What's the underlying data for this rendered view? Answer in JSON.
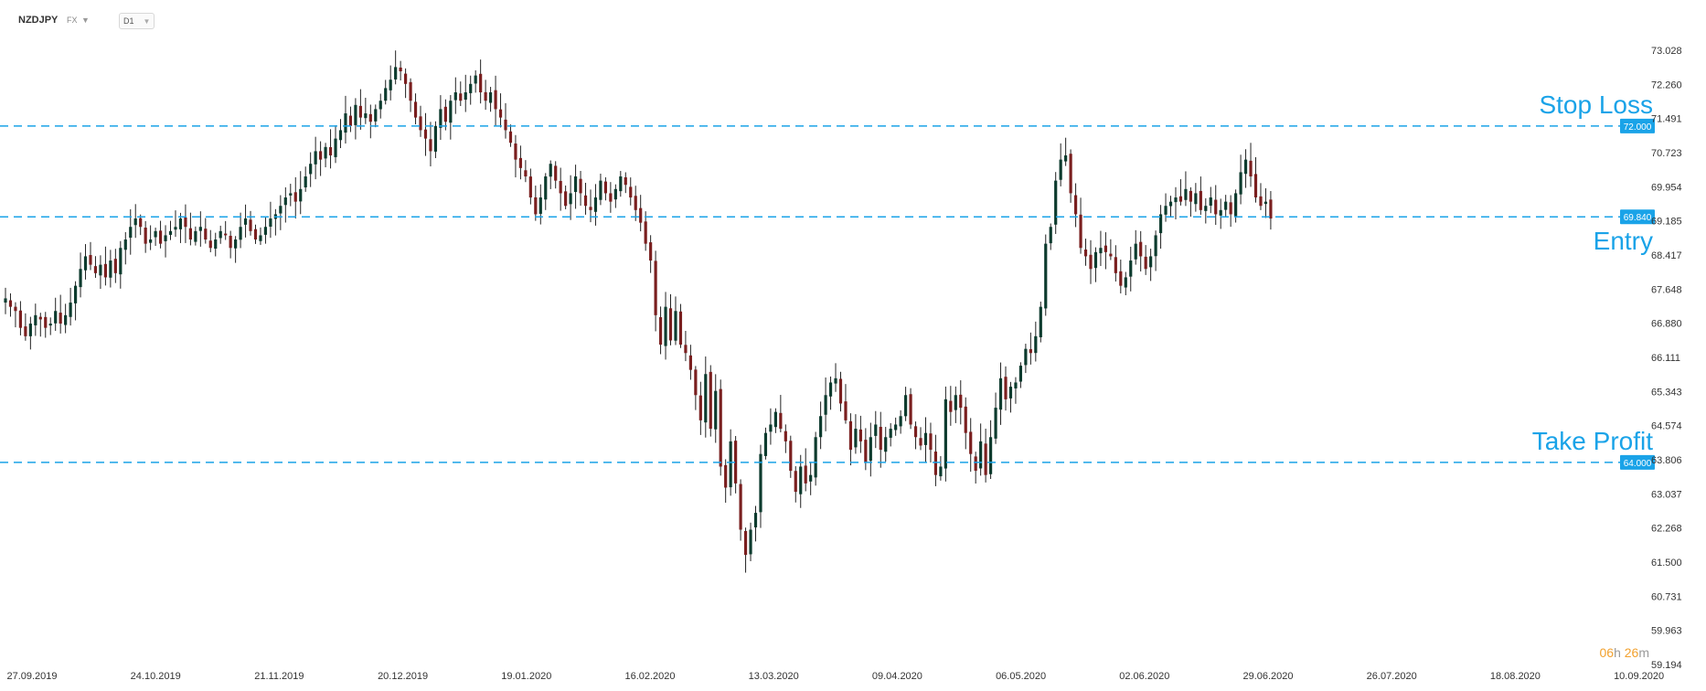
{
  "header": {
    "symbol": "NZDJPY",
    "market": "FX",
    "timeframe": "D1"
  },
  "timer": {
    "hours": "06",
    "h_unit": "h",
    "minutes": "26",
    "m_unit": "m"
  },
  "colors": {
    "bull": "#0d3b2e",
    "bear": "#7a1f1f",
    "level_line": "#1aa3e8",
    "level_text": "#1aa3e8",
    "axis_text": "#333333",
    "timer": "#f2a12e"
  },
  "chart_data": {
    "type": "candlestick",
    "title": "",
    "ylim": [
      59.194,
      73.8
    ],
    "y_ticks": [
      "73.028",
      "72.260",
      "71.491",
      "70.723",
      "69.954",
      "69.185",
      "68.417",
      "67.648",
      "66.880",
      "66.111",
      "65.343",
      "64.574",
      "63.806",
      "63.037",
      "62.268",
      "61.500",
      "60.731",
      "59.963",
      "59.194"
    ],
    "x_ticks": [
      "27.09.2019",
      "24.10.2019",
      "21.11.2019",
      "20.12.2019",
      "19.01.2020",
      "16.02.2020",
      "13.03.2020",
      "09.04.2020",
      "06.05.2020",
      "02.06.2020",
      "29.06.2020",
      "26.07.2020",
      "18.08.2020",
      "10.09.2020"
    ],
    "grid": false,
    "levels": [
      {
        "label": "Stop Loss",
        "value": 72.0,
        "value_label": "72.000"
      },
      {
        "label": "Entry",
        "value": 69.84,
        "value_label": "69.840"
      },
      {
        "label": "Take Profit",
        "value": 64.0,
        "value_label": "64.000"
      }
    ],
    "close": [
      67.9,
      67.7,
      67.6,
      67.2,
      67.0,
      67.3,
      67.5,
      67.4,
      67.2,
      67.3,
      67.6,
      67.3,
      67.5,
      67.8,
      68.2,
      68.6,
      68.9,
      68.7,
      68.5,
      68.7,
      68.4,
      68.8,
      68.5,
      69.1,
      69.3,
      69.6,
      69.8,
      69.6,
      69.2,
      69.3,
      69.5,
      69.2,
      69.4,
      69.5,
      69.6,
      69.8,
      69.6,
      69.3,
      69.5,
      69.6,
      69.3,
      69.1,
      69.3,
      69.5,
      69.4,
      69.1,
      69.3,
      69.6,
      69.8,
      69.5,
      69.3,
      69.4,
      69.6,
      69.8,
      69.9,
      70.1,
      70.3,
      70.4,
      70.2,
      70.5,
      70.8,
      71.1,
      71.4,
      71.2,
      71.5,
      71.3,
      71.7,
      71.9,
      72.3,
      72.0,
      72.5,
      72.2,
      72.3,
      72.1,
      72.4,
      72.6,
      72.9,
      73.1,
      73.4,
      73.3,
      73.0,
      72.6,
      72.2,
      71.9,
      71.7,
      71.4,
      72.0,
      72.4,
      72.1,
      72.6,
      72.8,
      72.6,
      72.8,
      73.0,
      73.2,
      72.8,
      72.6,
      72.8,
      72.4,
      72.2,
      71.9,
      71.6,
      71.2,
      71.0,
      70.8,
      70.3,
      69.9,
      70.3,
      70.8,
      71.1,
      70.7,
      70.4,
      70.1,
      70.4,
      70.8,
      70.4,
      70.1,
      70.0,
      70.3,
      70.7,
      70.4,
      70.2,
      70.5,
      70.8,
      70.6,
      70.3,
      70.0,
      69.7,
      69.2,
      68.8,
      67.5,
      66.8,
      67.7,
      66.9,
      67.6,
      66.8,
      66.6,
      66.2,
      65.6,
      65.0,
      66.1,
      64.8,
      65.7,
      63.9,
      63.4,
      64.5,
      63.5,
      62.4,
      61.8,
      62.4,
      62.8,
      64.2,
      64.7,
      64.9,
      65.2,
      64.8,
      64.5,
      63.8,
      63.3,
      63.9,
      63.5,
      63.7,
      64.6,
      65.1,
      65.6,
      65.9,
      66.0,
      65.4,
      65.0,
      64.3,
      64.8,
      64.5,
      64.0,
      64.6,
      64.9,
      64.3,
      64.6,
      64.8,
      64.9,
      65.1,
      65.6,
      64.9,
      64.6,
      64.4,
      64.7,
      64.3,
      63.7,
      63.9,
      65.5,
      65.2,
      65.6,
      65.3,
      64.7,
      64.2,
      63.8,
      64.5,
      63.7,
      64.6,
      65.3,
      66.0,
      65.5,
      65.8,
      65.9,
      66.3,
      66.7,
      66.6,
      67.0,
      67.7,
      69.2,
      69.6,
      70.7,
      71.2,
      71.3,
      70.4,
      69.9,
      69.1,
      68.9,
      68.6,
      69.0,
      69.1,
      69.0,
      68.9,
      68.5,
      68.2,
      68.4,
      68.8,
      69.2,
      68.9,
      68.6,
      68.9,
      69.4,
      69.9,
      70.1,
      70.2,
      70.3,
      70.2,
      70.5,
      70.2,
      70.4,
      70.0,
      70.1,
      70.3,
      69.9,
      70.0,
      70.2,
      69.9,
      70.4,
      70.9,
      71.2,
      70.8,
      70.3,
      70.1,
      70.2,
      69.8
    ]
  }
}
